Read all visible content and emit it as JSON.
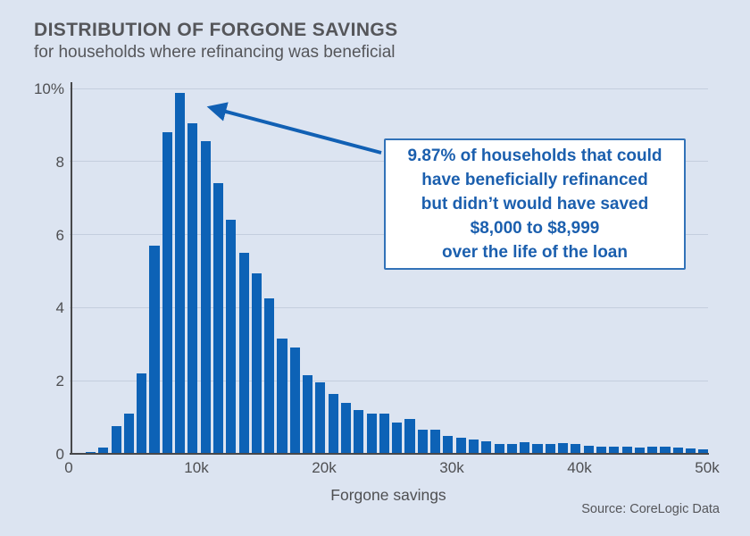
{
  "header": {
    "title": "DISTRIBUTION OF FORGONE SAVINGS",
    "subtitle": "for households where refinancing was beneficial"
  },
  "source": "Source: CoreLogic Data",
  "annotation": {
    "lines": [
      "9.87% of households that could",
      "have beneficially refinanced",
      "but didn’t would have saved",
      "$8,000 to $8,999",
      "over the life of the loan"
    ]
  },
  "chart_data": {
    "type": "bar",
    "title": "DISTRIBUTION OF FORGONE SAVINGS",
    "subtitle": "for households where refinancing was beneficial",
    "xlabel": "Forgone savings",
    "ylabel": "",
    "ylim": [
      0,
      10
    ],
    "xlim_thousands": [
      0,
      50
    ],
    "grid": "horizontal",
    "bin_width_dollars": 1000,
    "bin_start_thousands": 1,
    "values_pct": [
      0.05,
      0.17,
      0.75,
      1.1,
      2.2,
      5.7,
      8.8,
      9.87,
      9.05,
      8.55,
      7.4,
      6.4,
      5.5,
      4.95,
      4.25,
      3.15,
      2.9,
      2.15,
      1.95,
      1.65,
      1.4,
      1.2,
      1.1,
      1.1,
      0.85,
      0.95,
      0.65,
      0.65,
      0.5,
      0.45,
      0.4,
      0.35,
      0.26,
      0.28,
      0.33,
      0.28,
      0.27,
      0.3,
      0.28,
      0.22,
      0.2,
      0.2,
      0.19,
      0.16,
      0.19,
      0.19,
      0.16,
      0.14,
      0.12
    ],
    "y_ticks": [
      {
        "value": 0,
        "label": "0"
      },
      {
        "value": 2,
        "label": "2"
      },
      {
        "value": 4,
        "label": "4"
      },
      {
        "value": 6,
        "label": "6"
      },
      {
        "value": 8,
        "label": "8"
      },
      {
        "value": 10,
        "label": "10%"
      }
    ],
    "x_ticks": [
      {
        "value": 0,
        "label": "0"
      },
      {
        "value": 10,
        "label": "10k"
      },
      {
        "value": 20,
        "label": "20k"
      },
      {
        "value": 30,
        "label": "30k"
      },
      {
        "value": 40,
        "label": "40k"
      },
      {
        "value": 50,
        "label": "50k"
      }
    ],
    "highlight": {
      "bin": "$8,000 to $8,999",
      "value_pct": 9.87
    }
  },
  "colors": {
    "background": "#dce4f1",
    "bar": "#0d62b6",
    "annotation_text": "#1b5fae",
    "annotation_border": "#3272b8",
    "arrow": "#1160b4",
    "axis": "#47484a",
    "gridline": "#c4cede",
    "text_gray": "#55565a"
  }
}
